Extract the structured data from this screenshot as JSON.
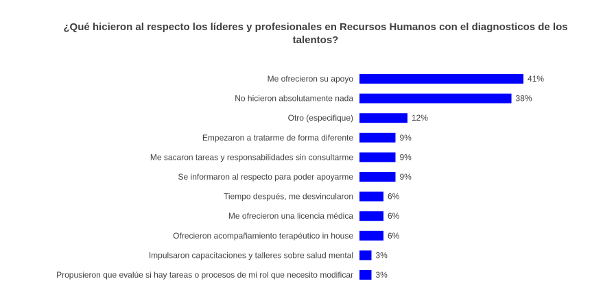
{
  "chart_data": {
    "type": "bar",
    "orientation": "horizontal",
    "title": "¿Qué hicieron al respecto los líderes y profesionales en Recursos Humanos con el diagnosticos de los talentos?",
    "xlabel": "",
    "ylabel": "",
    "grid": false,
    "legend": "none",
    "bar_color": "#0000ff",
    "value_suffix": "%",
    "categories": [
      "Me ofrecieron su apoyo",
      "No hicieron absolutamente nada",
      "Otro (especifique)",
      "Empezaron a tratarme de forma diferente",
      "Me sacaron tareas y responsabilidades sin consultarme",
      "Se informaron al respecto para poder apoyarme",
      "Tiempo después, me desvincularon",
      "Me ofrecieron una licencia médica",
      "Ofrecieron acompañamiento terapéutico in house",
      "Impulsaron capacitaciones y talleres sobre salud mental",
      "Propusieron que evalúe si hay tareas o procesos de mi rol que necesito modificar"
    ],
    "values": [
      41,
      38,
      12,
      9,
      9,
      9,
      6,
      6,
      6,
      3,
      3
    ],
    "data_labels": [
      "41%",
      "38%",
      "12%",
      "9%",
      "9%",
      "9%",
      "6%",
      "6%",
      "6%",
      "3%",
      "3%"
    ]
  }
}
